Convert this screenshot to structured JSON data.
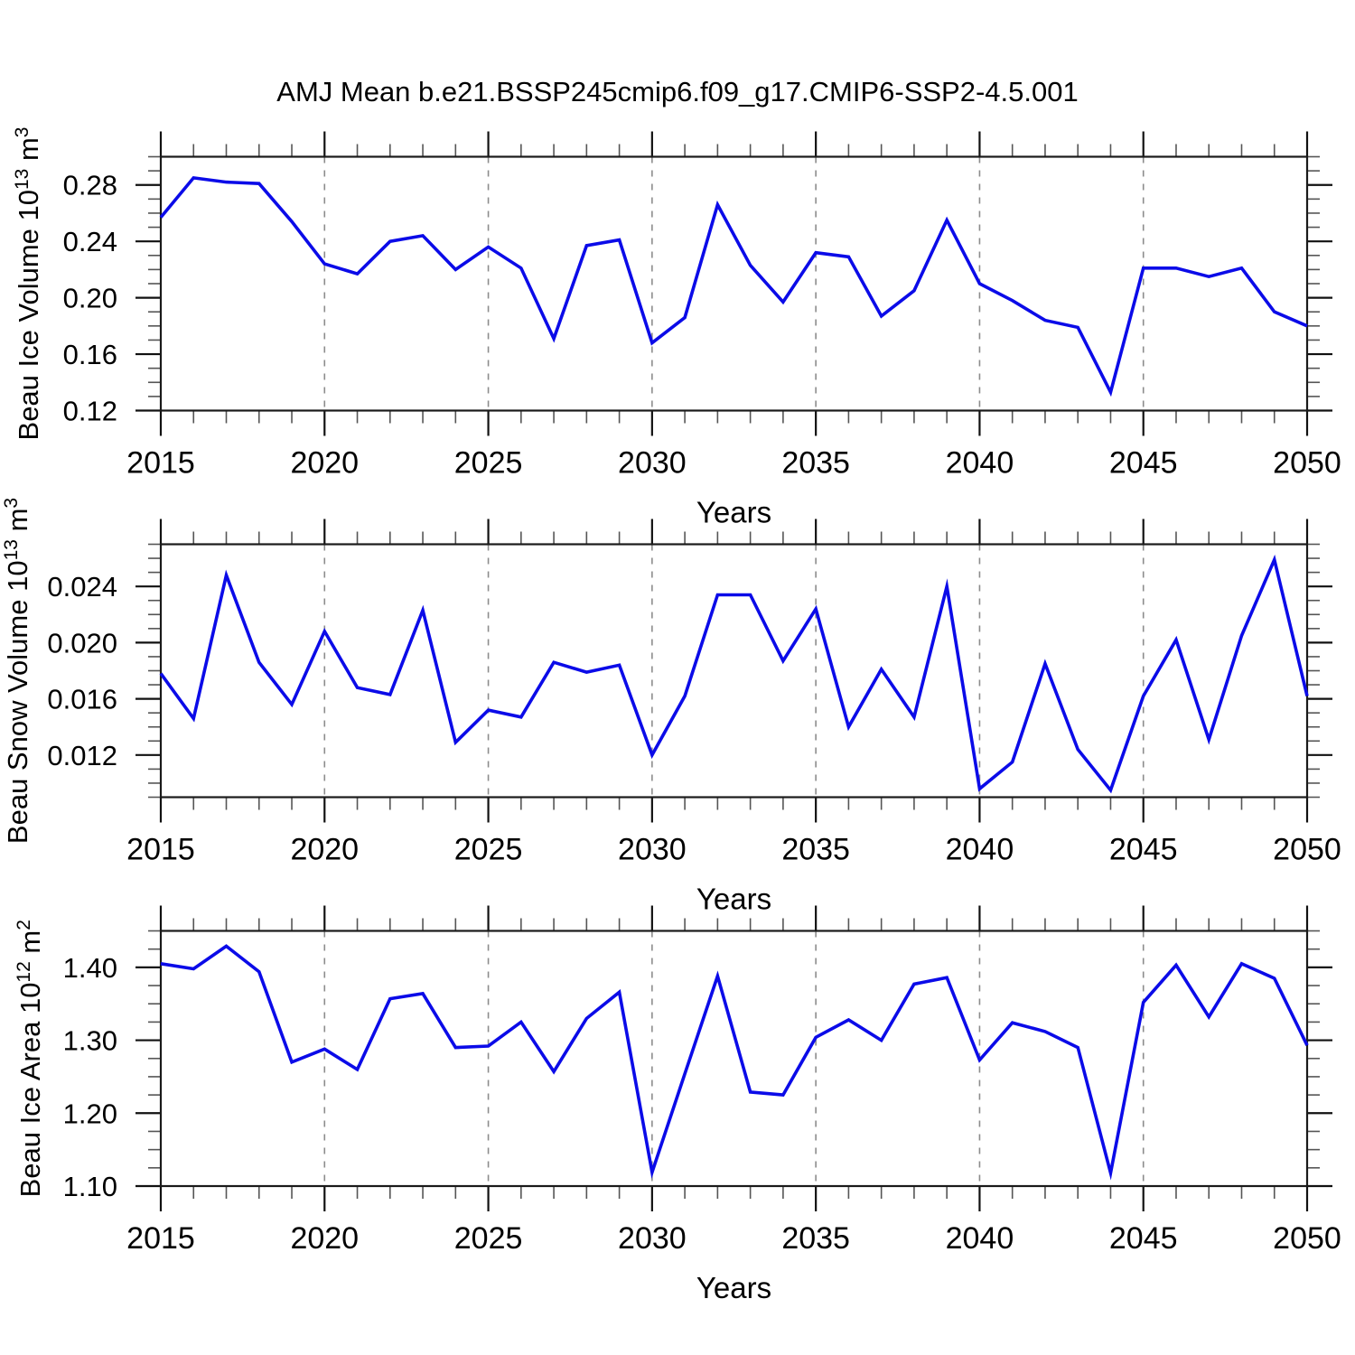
{
  "title": "AMJ Mean b.e21.BSSP245cmip6.f09_g17.CMIP6-SSP2-4.5.001",
  "colors": {
    "line": "#0b0be8",
    "grid": "#8c8c8c",
    "axis": "#1a1a1a",
    "minor_tick": "#555555",
    "major_tick": "#111111"
  },
  "years": [
    2015,
    2016,
    2017,
    2018,
    2019,
    2020,
    2021,
    2022,
    2023,
    2024,
    2025,
    2026,
    2027,
    2028,
    2029,
    2030,
    2031,
    2032,
    2033,
    2034,
    2035,
    2036,
    2037,
    2038,
    2039,
    2040,
    2041,
    2042,
    2043,
    2044,
    2045,
    2046,
    2047,
    2048,
    2049,
    2050
  ],
  "x_major_ticks": [
    2015,
    2020,
    2025,
    2030,
    2035,
    2040,
    2045,
    2050
  ],
  "x_major_labels": [
    "2015",
    "2020",
    "2025",
    "2030",
    "2035",
    "2040",
    "2045",
    "2050"
  ],
  "x_gridline_years": [
    2020,
    2025,
    2030,
    2035,
    2040,
    2045
  ],
  "chart_data": [
    {
      "type": "line",
      "ylabel_text": "Beau Ice Volume 10^13 m^3",
      "ylabel_parts": [
        {
          "text": "Beau Ice Volume 10"
        },
        {
          "text": "13",
          "sup": true
        },
        {
          "text": " m"
        },
        {
          "text": "3",
          "sup": true
        }
      ],
      "xlabel": "Years",
      "ylim": [
        0.12,
        0.3
      ],
      "ytick_values": [
        0.12,
        0.16,
        0.2,
        0.24,
        0.28
      ],
      "ytick_labels": [
        "0.12",
        "0.16",
        "0.20",
        "0.24",
        "0.28"
      ],
      "yminor_step": 0.01,
      "grid": "vertical-dashed",
      "legend": "none",
      "values": [
        0.257,
        0.285,
        0.282,
        0.281,
        0.254,
        0.224,
        0.217,
        0.24,
        0.244,
        0.22,
        0.236,
        0.221,
        0.171,
        0.237,
        0.241,
        0.168,
        0.186,
        0.266,
        0.223,
        0.197,
        0.232,
        0.229,
        0.187,
        0.205,
        0.255,
        0.21,
        0.198,
        0.184,
        0.179,
        0.133,
        0.221,
        0.221,
        0.215,
        0.221,
        0.19,
        0.18
      ]
    },
    {
      "type": "line",
      "ylabel_text": "Beau Snow Volume 10^13 m^3",
      "ylabel_parts": [
        {
          "text": "Beau Snow Volume 10"
        },
        {
          "text": "13",
          "sup": true
        },
        {
          "text": " m"
        },
        {
          "text": "3",
          "sup": true
        }
      ],
      "xlabel": "Years",
      "ylim": [
        0.009,
        0.027
      ],
      "ytick_values": [
        0.012,
        0.016,
        0.02,
        0.024
      ],
      "ytick_labels": [
        "0.012",
        "0.016",
        "0.020",
        "0.024"
      ],
      "yminor_step": 0.001,
      "grid": "vertical-dashed",
      "legend": "none",
      "values": [
        0.0178,
        0.0146,
        0.0248,
        0.0186,
        0.0156,
        0.0208,
        0.0168,
        0.0163,
        0.0223,
        0.0129,
        0.0152,
        0.0147,
        0.0186,
        0.0179,
        0.0184,
        0.012,
        0.0162,
        0.0234,
        0.0234,
        0.0187,
        0.0224,
        0.014,
        0.0181,
        0.0147,
        0.024,
        0.0096,
        0.0115,
        0.0185,
        0.0124,
        0.0095,
        0.0162,
        0.0202,
        0.0131,
        0.0205,
        0.0259,
        0.0162
      ]
    },
    {
      "type": "line",
      "ylabel_text": "Beau Ice Area 10^12 m^2",
      "ylabel_parts": [
        {
          "text": "Beau Ice Area 10"
        },
        {
          "text": "12",
          "sup": true
        },
        {
          "text": " m"
        },
        {
          "text": "2",
          "sup": true
        }
      ],
      "xlabel": "Years",
      "ylim": [
        1.1,
        1.45
      ],
      "ytick_values": [
        1.1,
        1.2,
        1.3,
        1.4
      ],
      "ytick_labels": [
        "1.10",
        "1.20",
        "1.30",
        "1.40"
      ],
      "yminor_step": 0.025,
      "grid": "vertical-dashed",
      "legend": "none",
      "values": [
        1.405,
        1.398,
        1.429,
        1.394,
        1.27,
        1.288,
        1.26,
        1.357,
        1.364,
        1.29,
        1.292,
        1.325,
        1.257,
        1.33,
        1.366,
        1.119,
        1.254,
        1.388,
        1.229,
        1.225,
        1.304,
        1.328,
        1.3,
        1.377,
        1.386,
        1.273,
        1.324,
        1.312,
        1.29,
        1.118,
        1.352,
        1.403,
        1.332,
        1.405,
        1.385,
        1.293
      ]
    }
  ]
}
